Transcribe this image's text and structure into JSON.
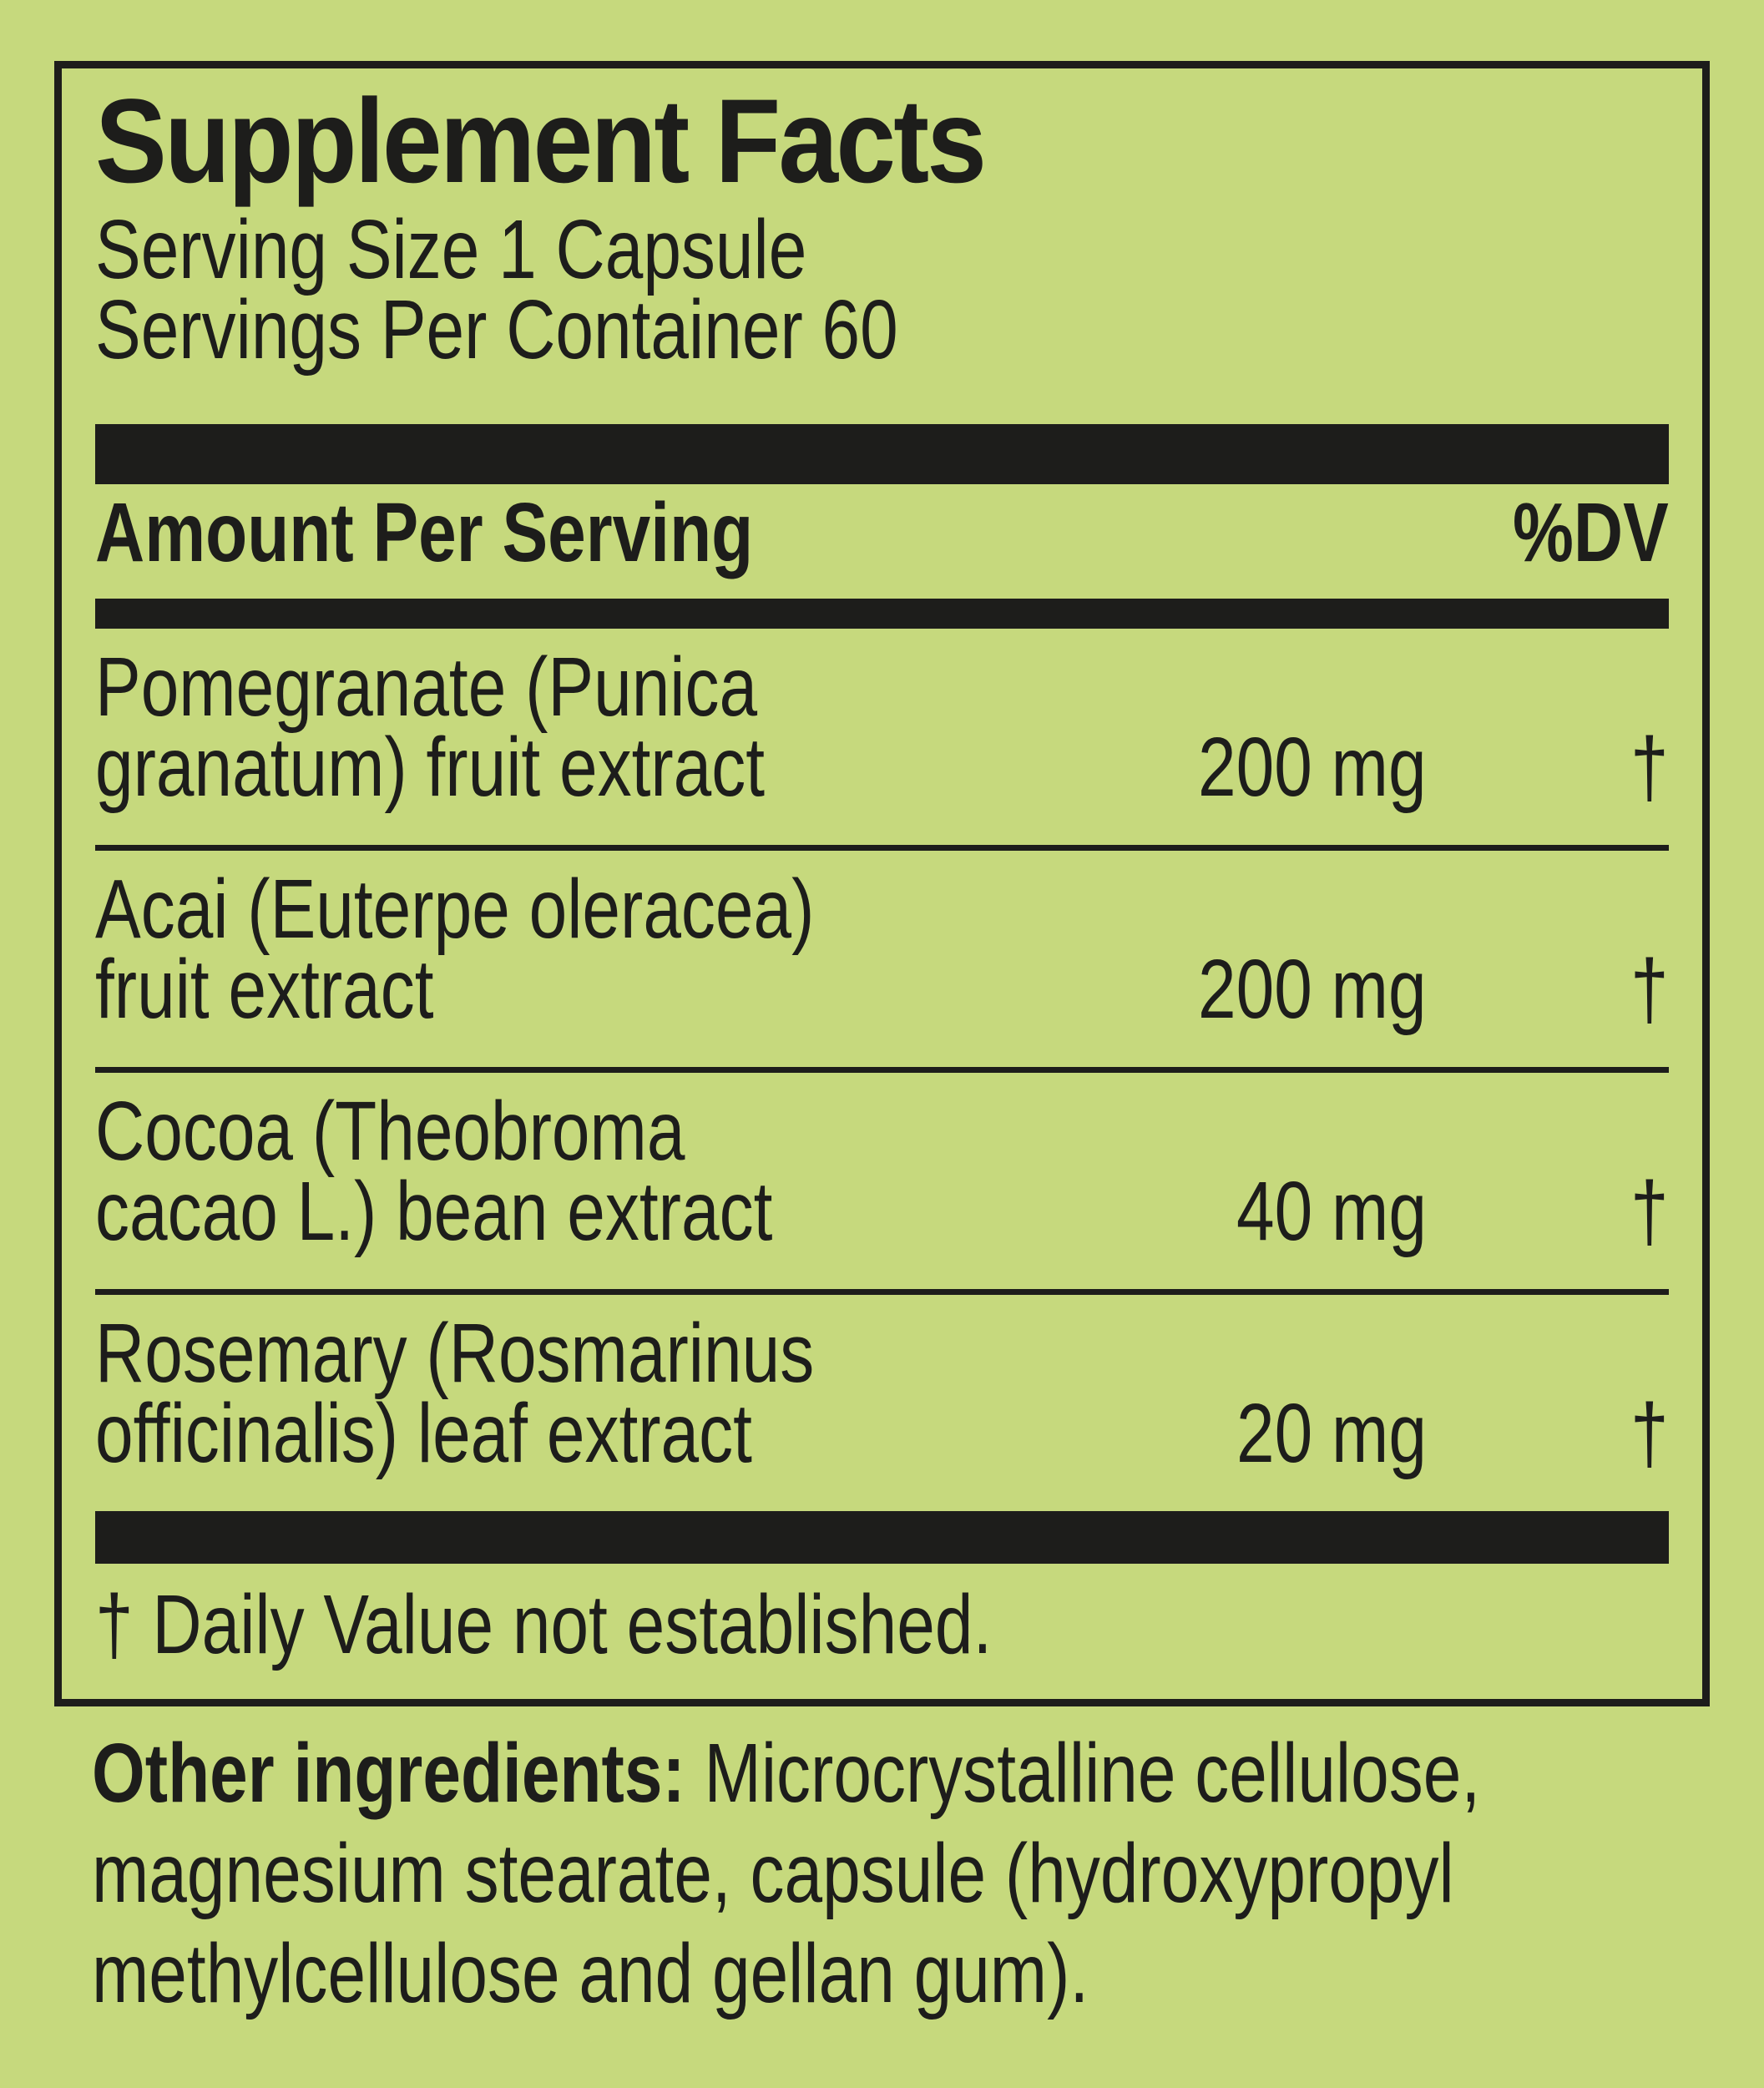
{
  "colors": {
    "background": "#c6d97d",
    "ink": "#1d1d1b"
  },
  "panel": {
    "title": "Supplement Facts",
    "serving_size": "Serving Size 1 Capsule",
    "servings_per_container": "Servings Per Container 60",
    "columns": {
      "amount_per_serving": "Amount Per Serving",
      "percent_dv": "%DV"
    },
    "rows": [
      {
        "name_line1": "Pomegranate (Punica",
        "name_line2": "granatum) fruit extract",
        "amount": "200 mg",
        "dv": "†"
      },
      {
        "name_line1": "Acai (Euterpe oleracea)",
        "name_line2": "fruit extract",
        "amount": "200 mg",
        "dv": "†"
      },
      {
        "name_line1": "Cocoa (Theobroma",
        "name_line2": "cacao L.) bean extract",
        "amount": "40 mg",
        "dv": "†"
      },
      {
        "name_line1": "Rosemary (Rosmarinus",
        "name_line2": "officinalis) leaf extract",
        "amount": "20 mg",
        "dv": "†"
      }
    ],
    "footnote": "† Daily Value not established.",
    "other_ingredients": {
      "bold_label": "Other ingredients:",
      "line1_rest": " Microcrystalline cellulose,",
      "line2": "magnesium stearate, capsule (hydroxypropyl",
      "line3": "methylcellulose and gellan gum)."
    }
  }
}
